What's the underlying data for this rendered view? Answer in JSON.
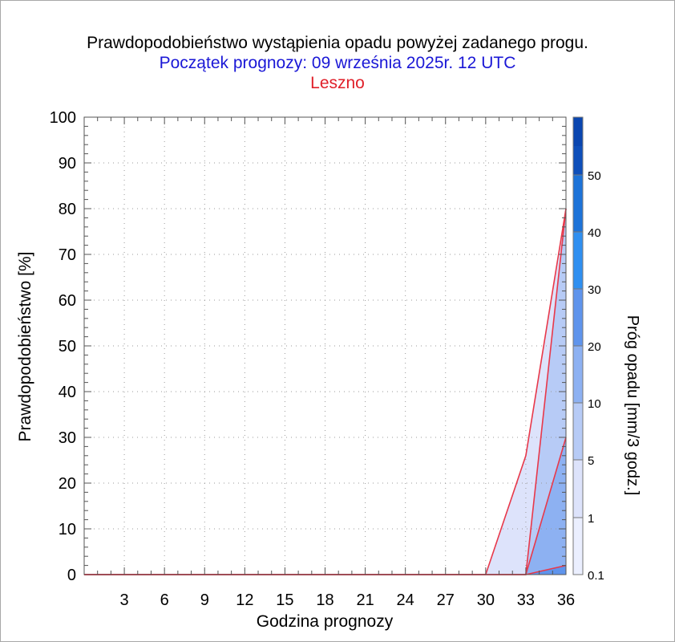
{
  "titles": {
    "main": "Prawdopodobieństwo wystąpienia opadu powyżej zadanego progu.",
    "forecast_start": "Początek prognozy: 09 września 2025r. 12 UTC",
    "location": "Leszno"
  },
  "colors": {
    "title_main": "#000000",
    "title_forecast_start": "#1a17d6",
    "title_location": "#e0202a",
    "line": "#e8384a"
  },
  "chart_data": {
    "type": "area",
    "xlabel": "Godzina prognozy",
    "ylabel": "Prawdopodobieństwo [%]",
    "x_ticks": [
      3,
      6,
      9,
      12,
      15,
      18,
      21,
      24,
      27,
      30,
      33,
      36
    ],
    "y_ticks": [
      0,
      10,
      20,
      30,
      40,
      50,
      60,
      70,
      80,
      90,
      100
    ],
    "xlim": [
      0,
      36
    ],
    "ylim": [
      0,
      100
    ],
    "grid": true,
    "x": [
      0,
      3,
      6,
      9,
      12,
      15,
      18,
      21,
      24,
      27,
      30,
      33,
      36
    ],
    "series": [
      {
        "threshold": 0.1,
        "color": "#dde3fb",
        "values": [
          0,
          0,
          0,
          0,
          0,
          0,
          0,
          0,
          0,
          0,
          0,
          26,
          80
        ]
      },
      {
        "threshold": 1,
        "color": "#b7cbf6",
        "values": [
          0,
          0,
          0,
          0,
          0,
          0,
          0,
          0,
          0,
          0,
          0,
          0,
          80
        ]
      },
      {
        "threshold": 5,
        "color": "#8db1f2",
        "values": [
          0,
          0,
          0,
          0,
          0,
          0,
          0,
          0,
          0,
          0,
          0,
          0,
          30
        ]
      },
      {
        "threshold": 10,
        "color": "#5f94ec",
        "values": [
          0,
          0,
          0,
          0,
          0,
          0,
          0,
          0,
          0,
          0,
          0,
          0,
          2
        ]
      }
    ],
    "colorbar": {
      "label": "Próg opadu [mm/3 godz.]",
      "tick_labels": [
        "0.1",
        "1",
        "5",
        "10",
        "20",
        "30",
        "40",
        "50"
      ],
      "colors": [
        "#ebefff",
        "#dde3fb",
        "#b7cbf6",
        "#8db1f2",
        "#5f94ec",
        "#2f8ff0",
        "#1d73d8",
        "#155cc4",
        "#0a46b0"
      ]
    }
  }
}
